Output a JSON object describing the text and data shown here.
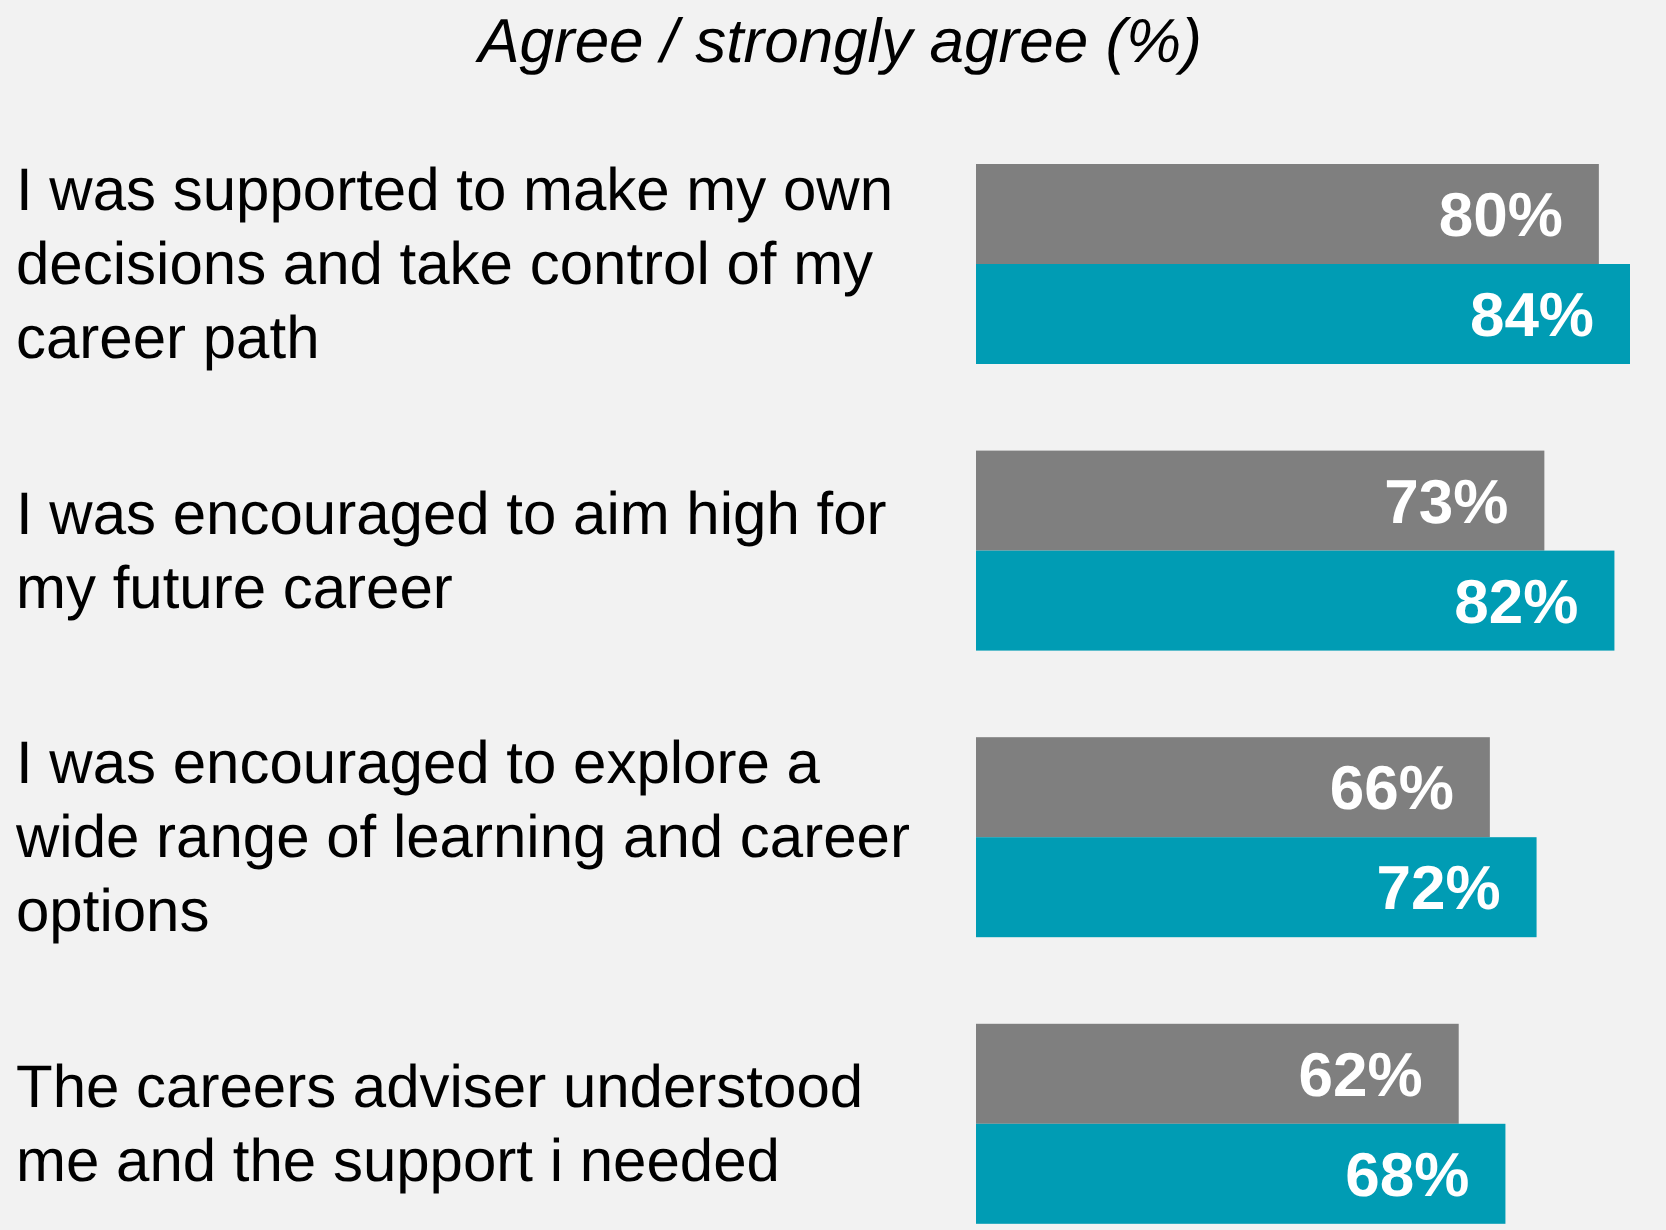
{
  "chart_data": {
    "type": "bar",
    "orientation": "horizontal",
    "title": "Agree / strongly agree (%)",
    "categories": [
      "I was supported to make my own decisions and take control of my career path",
      "I was encouraged to aim high for my future career",
      "I was encouraged to explore a wide range of learning and career options",
      "The careers adviser understood me and the support i needed"
    ],
    "series": [
      {
        "color": "#7f7f7f",
        "values": [
          80,
          73,
          66,
          62
        ],
        "value_labels": [
          "80%",
          "73%",
          "66%",
          "62%"
        ]
      },
      {
        "color": "#009cb4",
        "values": [
          84,
          82,
          72,
          68
        ],
        "value_labels": [
          "84%",
          "82%",
          "72%",
          "68%"
        ]
      }
    ],
    "xlim": [
      0,
      84
    ]
  }
}
